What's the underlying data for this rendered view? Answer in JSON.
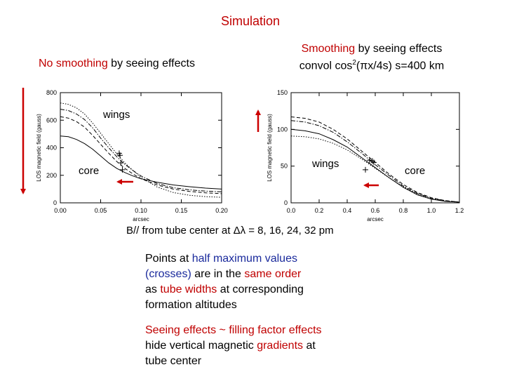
{
  "title": "Simulation",
  "left_label": {
    "prefix": "No ",
    "highlight": "smoothing",
    "suffix": " by seeing effects"
  },
  "right_label": {
    "line1_highlight": "Smoothing",
    "line1_suffix": " by seeing effects",
    "line2_prefix": "convol  cos",
    "line2_sup": "2",
    "line2_suffix": "(πx/4s)   s=400 km"
  },
  "annotations": {
    "wings": "wings",
    "core": "core"
  },
  "caption": "B// from tube center at Δλ = 8, 16, 24, 32 pm",
  "note1": {
    "l1a": "Points at ",
    "l1b": "half maximum values",
    "l2a": "(crosses)",
    "l2b": " are in the ",
    "l2c": "same order",
    "l3a": "as ",
    "l3b": "tube widths",
    "l3c": " at corresponding",
    "l4": "formation altitudes"
  },
  "note2": {
    "l1": "Seeing effects ~ filling factor effects",
    "l2a": "hide vertical magnetic ",
    "l2b": "gradients",
    "l2c": " at",
    "l3": "tube center"
  },
  "colors": {
    "title": "#c00000",
    "highlight": "#c00000",
    "blue_text": "#1a2a9c",
    "arrow": "#cc0000"
  },
  "chart_data": [
    {
      "type": "line",
      "name": "no-smoothing",
      "xlabel": "arcsec",
      "ylabel": "LOS magnetic field (gauss)",
      "xlim": [
        0,
        0.2
      ],
      "ylim": [
        0,
        800
      ],
      "xticks": [
        "0.00",
        "0.05",
        "0.10",
        "0.15",
        "0.20"
      ],
      "yticks": [
        "0",
        "200",
        "400",
        "600",
        "800"
      ],
      "series": [
        {
          "name": "8 pm",
          "style": "solid",
          "points": [
            [
              0,
              485
            ],
            [
              0.01,
              480
            ],
            [
              0.02,
              460
            ],
            [
              0.03,
              430
            ],
            [
              0.04,
              390
            ],
            [
              0.05,
              340
            ],
            [
              0.06,
              290
            ],
            [
              0.07,
              250
            ],
            [
              0.08,
              220
            ],
            [
              0.09,
              195
            ],
            [
              0.1,
              175
            ],
            [
              0.12,
              150
            ],
            [
              0.14,
              130
            ],
            [
              0.16,
              117
            ],
            [
              0.18,
              107
            ],
            [
              0.2,
              100
            ]
          ]
        },
        {
          "name": "16 pm",
          "style": "dash-dot",
          "points": [
            [
              0,
              680
            ],
            [
              0.01,
              670
            ],
            [
              0.02,
              645
            ],
            [
              0.03,
              605
            ],
            [
              0.04,
              545
            ],
            [
              0.05,
              470
            ],
            [
              0.06,
              400
            ],
            [
              0.07,
              335
            ],
            [
              0.08,
              280
            ],
            [
              0.09,
              235
            ],
            [
              0.1,
              195
            ],
            [
              0.12,
              140
            ],
            [
              0.14,
              110
            ],
            [
              0.16,
              95
            ],
            [
              0.18,
              85
            ],
            [
              0.2,
              80
            ]
          ]
        },
        {
          "name": "24 pm",
          "style": "dashed",
          "points": [
            [
              0,
              625
            ],
            [
              0.01,
              615
            ],
            [
              0.02,
              590
            ],
            [
              0.03,
              550
            ],
            [
              0.04,
              490
            ],
            [
              0.05,
              425
            ],
            [
              0.06,
              360
            ],
            [
              0.07,
              300
            ],
            [
              0.08,
              250
            ],
            [
              0.09,
              210
            ],
            [
              0.1,
              175
            ],
            [
              0.12,
              130
            ],
            [
              0.14,
              100
            ],
            [
              0.16,
              83
            ],
            [
              0.18,
              73
            ],
            [
              0.2,
              67
            ]
          ]
        },
        {
          "name": "32 pm",
          "style": "dotted",
          "points": [
            [
              0,
              725
            ],
            [
              0.01,
              715
            ],
            [
              0.02,
              690
            ],
            [
              0.03,
              645
            ],
            [
              0.04,
              580
            ],
            [
              0.05,
              505
            ],
            [
              0.06,
              430
            ],
            [
              0.07,
              355
            ],
            [
              0.08,
              290
            ],
            [
              0.09,
              235
            ],
            [
              0.1,
              185
            ],
            [
              0.12,
              115
            ],
            [
              0.14,
              75
            ],
            [
              0.16,
              55
            ],
            [
              0.18,
              45
            ],
            [
              0.2,
              40
            ]
          ]
        }
      ],
      "half_max_points": [
        [
          0.073,
          360
        ],
        [
          0.074,
          345
        ],
        [
          0.075,
          290
        ],
        [
          0.077,
          240
        ]
      ]
    },
    {
      "type": "line",
      "name": "smoothing",
      "xlabel": "arcsec",
      "ylabel": "LOS magnetic field (gauss)",
      "xlim": [
        0,
        1.2
      ],
      "ylim": [
        0,
        150
      ],
      "xticks": [
        "0.0",
        "0.2",
        "0.4",
        "0.6",
        "0.8",
        "1.0",
        "1.2"
      ],
      "yticks": [
        "0",
        "50",
        "100",
        "150"
      ],
      "series": [
        {
          "name": "8 pm",
          "style": "solid",
          "points": [
            [
              0,
              100
            ],
            [
              0.1,
              98
            ],
            [
              0.2,
              94
            ],
            [
              0.3,
              86
            ],
            [
              0.4,
              76
            ],
            [
              0.5,
              62
            ],
            [
              0.6,
              48
            ],
            [
              0.7,
              34
            ],
            [
              0.8,
              21
            ],
            [
              0.9,
              11
            ],
            [
              1.0,
              5
            ],
            [
              1.1,
              2
            ],
            [
              1.2,
              1
            ]
          ]
        },
        {
          "name": "16 pm",
          "style": "dash-dot",
          "points": [
            [
              0,
              112
            ],
            [
              0.1,
              110
            ],
            [
              0.2,
              105
            ],
            [
              0.3,
              96
            ],
            [
              0.4,
              83
            ],
            [
              0.5,
              68
            ],
            [
              0.6,
              52
            ],
            [
              0.7,
              37
            ],
            [
              0.8,
              23
            ],
            [
              0.9,
              13
            ],
            [
              1.0,
              6
            ],
            [
              1.1,
              3
            ],
            [
              1.2,
              1
            ]
          ]
        },
        {
          "name": "24 pm",
          "style": "dashed",
          "points": [
            [
              0,
              117
            ],
            [
              0.1,
              115
            ],
            [
              0.2,
              110
            ],
            [
              0.3,
              100
            ],
            [
              0.4,
              87
            ],
            [
              0.5,
              71
            ],
            [
              0.6,
              55
            ],
            [
              0.7,
              39
            ],
            [
              0.8,
              25
            ],
            [
              0.9,
              14
            ],
            [
              1.0,
              7
            ],
            [
              1.1,
              3
            ],
            [
              1.2,
              1
            ]
          ]
        },
        {
          "name": "32 pm",
          "style": "dotted",
          "points": [
            [
              0,
              91
            ],
            [
              0.1,
              90
            ],
            [
              0.2,
              87
            ],
            [
              0.3,
              81
            ],
            [
              0.4,
              72
            ],
            [
              0.5,
              60
            ],
            [
              0.6,
              47
            ],
            [
              0.7,
              34
            ],
            [
              0.8,
              22
            ],
            [
              0.9,
              12
            ],
            [
              1.0,
              6
            ],
            [
              1.1,
              2
            ],
            [
              1.2,
              1
            ]
          ]
        }
      ],
      "half_max_points": [
        [
          0.56,
          58
        ],
        [
          0.58,
          57
        ],
        [
          0.59,
          55
        ],
        [
          0.53,
          45
        ]
      ]
    }
  ]
}
